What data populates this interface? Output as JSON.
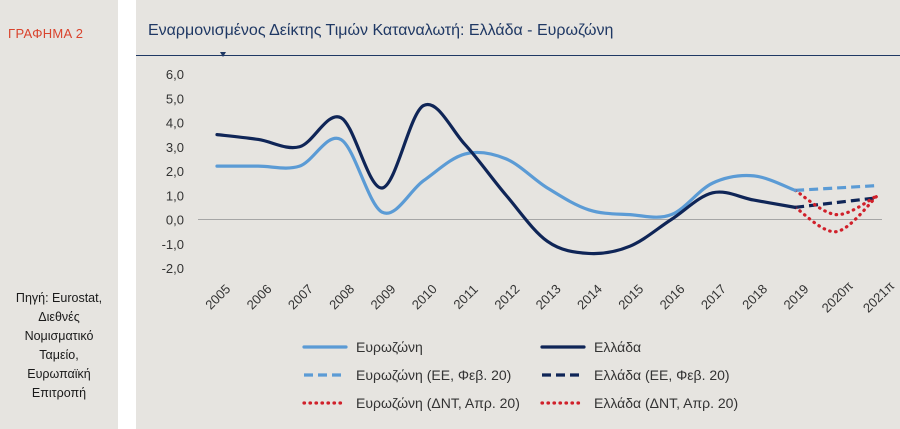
{
  "sidebar": {
    "title": "ΓΡΑΦΗΜΑ 2",
    "source_lines": [
      "Πηγή: Eurostat,",
      "Διεθνές",
      "Νομισματικό",
      "Ταμείο,",
      "Ευρωπαϊκή",
      "Επιτροπή"
    ]
  },
  "colors": {
    "eurozone": "#5b9bd5",
    "greece": "#0f2557",
    "forecast_red": "#d0202a",
    "axis_text": "#333333",
    "title": "#1f3864",
    "accent": "#d9432d"
  },
  "chart_data": {
    "type": "line",
    "title": "Εναρμονισμένος Δείκτης Τιμών Καταναλωτή: Ελλάδα - Ευρωζώνη",
    "xlabel": "",
    "ylabel": "",
    "ylim": [
      -2.0,
      6.0
    ],
    "yticks": [
      "6,0",
      "5,0",
      "4,0",
      "3,0",
      "2,0",
      "1,0",
      "0,0",
      "-1,0",
      "-2,0"
    ],
    "categories": [
      "2005",
      "2006",
      "2007",
      "2008",
      "2009",
      "2010",
      "2011",
      "2012",
      "2013",
      "2014",
      "2015",
      "2016",
      "2017",
      "2018",
      "2019",
      "2020π",
      "2021π"
    ],
    "series": [
      {
        "name": "Ευρωζώνη",
        "style": "solid",
        "color_key": "eurozone",
        "values": [
          2.2,
          2.2,
          2.2,
          3.3,
          0.3,
          1.6,
          2.7,
          2.5,
          1.3,
          0.4,
          0.2,
          0.2,
          1.5,
          1.8,
          1.2,
          null,
          null
        ]
      },
      {
        "name": "Ελλάδα",
        "style": "solid",
        "color_key": "greece",
        "values": [
          3.5,
          3.3,
          3.0,
          4.2,
          1.3,
          4.7,
          3.1,
          1.0,
          -0.9,
          -1.4,
          -1.1,
          0.0,
          1.1,
          0.8,
          0.5,
          null,
          null
        ]
      },
      {
        "name": "Ευρωζώνη (ΕΕ, Φεβ. 20)",
        "style": "dashed",
        "color_key": "eurozone",
        "values": [
          null,
          null,
          null,
          null,
          null,
          null,
          null,
          null,
          null,
          null,
          null,
          null,
          null,
          null,
          1.2,
          1.3,
          1.4
        ]
      },
      {
        "name": "Ελλάδα (ΕΕ, Φεβ. 20)",
        "style": "dashed",
        "color_key": "greece",
        "values": [
          null,
          null,
          null,
          null,
          null,
          null,
          null,
          null,
          null,
          null,
          null,
          null,
          null,
          null,
          0.5,
          0.7,
          0.9
        ]
      },
      {
        "name": "Ευρωζώνη (ΔΝΤ, Απρ. 20)",
        "style": "dotted",
        "color_key": "forecast_red",
        "values": [
          null,
          null,
          null,
          null,
          null,
          null,
          null,
          null,
          null,
          null,
          null,
          null,
          null,
          null,
          1.2,
          0.2,
          1.0
        ]
      },
      {
        "name": "Ελλάδα (ΔΝΤ, Απρ. 20)",
        "style": "dotted",
        "color_key": "forecast_red",
        "values": [
          null,
          null,
          null,
          null,
          null,
          null,
          null,
          null,
          null,
          null,
          null,
          null,
          null,
          null,
          0.5,
          -0.5,
          1.0
        ]
      }
    ],
    "legend": [
      "Ευρωζώνη",
      "Ελλάδα",
      "Ευρωζώνη (ΕΕ, Φεβ. 20)",
      "Ελλάδα (ΕΕ, Φεβ. 20)",
      "Ευρωζώνη (ΔΝΤ, Απρ. 20)",
      "Ελλάδα (ΔΝΤ, Απρ. 20)"
    ],
    "legend_position": "bottom",
    "grid": false
  }
}
